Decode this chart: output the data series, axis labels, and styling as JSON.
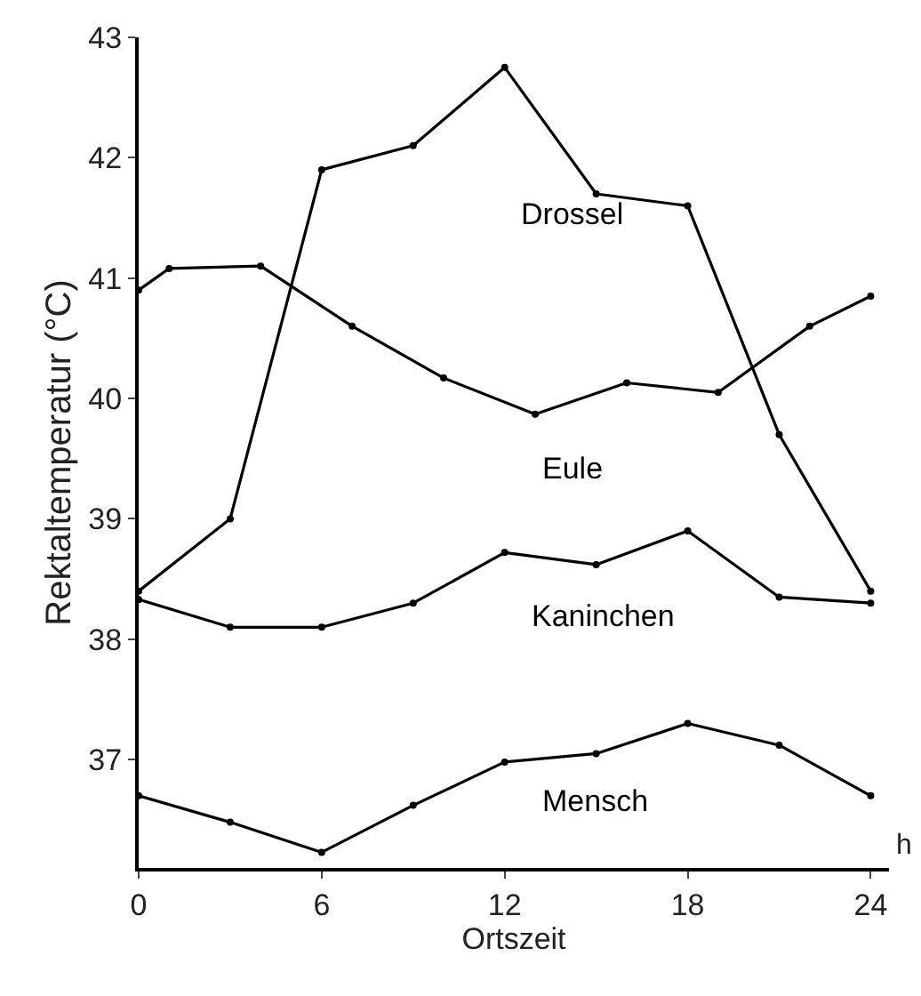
{
  "chart_data": {
    "type": "line",
    "xlabel": "Ortszeit",
    "ylabel": "Rektaltemperatur (°C)",
    "annotations": [
      "h"
    ],
    "xlim": [
      0,
      24.6
    ],
    "xticks": [
      0,
      6,
      12,
      18,
      24
    ],
    "ylim": [
      36.1,
      43
    ],
    "yticks": [
      37,
      38,
      39,
      40,
      41,
      42,
      43
    ],
    "legend": false,
    "marker": "circle",
    "line_style": "solid",
    "series": [
      {
        "name": "Drossel",
        "color": "#000000",
        "x": [
          0,
          3,
          6,
          9,
          12,
          15,
          18,
          21,
          24
        ],
        "values": [
          38.4,
          39.0,
          41.9,
          42.1,
          42.75,
          41.7,
          41.6,
          39.7,
          38.4
        ]
      },
      {
        "name": "Eule",
        "color": "#000000",
        "x": [
          0,
          1,
          4,
          7,
          10,
          13,
          16,
          19,
          22,
          24
        ],
        "values": [
          40.9,
          41.08,
          41.1,
          40.6,
          40.17,
          39.87,
          40.13,
          40.05,
          40.6,
          40.85
        ]
      },
      {
        "name": "Kaninchen",
        "color": "#000000",
        "x": [
          0,
          3,
          6,
          9,
          12,
          15,
          18,
          21,
          24
        ],
        "values": [
          38.33,
          38.1,
          38.1,
          38.3,
          38.72,
          38.62,
          38.9,
          38.35,
          38.3
        ]
      },
      {
        "name": "Mensch",
        "color": "#000000",
        "x": [
          0,
          3,
          6,
          9,
          12,
          15,
          18,
          21,
          24
        ],
        "values": [
          36.7,
          36.48,
          36.23,
          36.62,
          36.98,
          37.05,
          37.3,
          37.12,
          36.7
        ]
      }
    ]
  }
}
